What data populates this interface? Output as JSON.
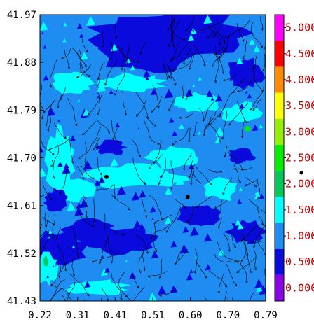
{
  "chart_data": {
    "type": "heatmap",
    "title": "",
    "xlabel": "",
    "ylabel": "",
    "xlim": [
      0.22,
      0.79
    ],
    "ylim": [
      41.43,
      41.97
    ],
    "x_ticks": [
      "0.22",
      "0.31",
      "0.41",
      "0.51",
      "0.60",
      "0.70",
      "0.79"
    ],
    "y_ticks": [
      "41.43",
      "41.52",
      "41.61",
      "41.70",
      "41.79",
      "41.88",
      "41.97"
    ],
    "streamlines": true,
    "points": [
      {
        "x": 0.388,
        "y": 41.664
      },
      {
        "x": 0.593,
        "y": 41.626
      }
    ],
    "colorbar": {
      "min": -0.25,
      "max": 5.25,
      "labels": [
        "0.000",
        "0.500",
        "1.000",
        "1.500",
        "2.000",
        "2.500",
        "3.000",
        "3.500",
        "4.000",
        "4.500",
        "5.000"
      ],
      "bands": [
        {
          "from": -0.25,
          "to": 0.25,
          "color": "#8a00e6"
        },
        {
          "from": 0.25,
          "to": 0.75,
          "color": "#0a0adc"
        },
        {
          "from": 0.75,
          "to": 1.25,
          "color": "#1e8cf0"
        },
        {
          "from": 1.25,
          "to": 1.75,
          "color": "#00ffff"
        },
        {
          "from": 1.75,
          "to": 2.25,
          "color": "#00c95a"
        },
        {
          "from": 2.25,
          "to": 2.75,
          "color": "#00ee00"
        },
        {
          "from": 2.75,
          "to": 3.25,
          "color": "#96ee00"
        },
        {
          "from": 3.25,
          "to": 3.75,
          "color": "#ffff00"
        },
        {
          "from": 3.75,
          "to": 4.25,
          "color": "#ff8c00"
        },
        {
          "from": 4.25,
          "to": 4.75,
          "color": "#ff0000"
        },
        {
          "from": 4.75,
          "to": 5.25,
          "color": "#ff00ff"
        }
      ]
    },
    "regions": [
      {
        "x": 0.55,
        "y": 41.935,
        "rx": 0.2,
        "ry": 0.04,
        "value": 0.5
      },
      {
        "x": 0.49,
        "y": 41.905,
        "rx": 0.14,
        "ry": 0.04,
        "value": 0.5
      },
      {
        "x": 0.74,
        "y": 41.86,
        "rx": 0.045,
        "ry": 0.03,
        "value": 0.5
      },
      {
        "x": 0.27,
        "y": 41.53,
        "rx": 0.07,
        "ry": 0.03,
        "value": 0.5
      },
      {
        "x": 0.42,
        "y": 41.545,
        "rx": 0.09,
        "ry": 0.025,
        "value": 0.5
      },
      {
        "x": 0.34,
        "y": 41.565,
        "rx": 0.06,
        "ry": 0.02,
        "value": 0.5
      },
      {
        "x": 0.3,
        "y": 41.84,
        "rx": 0.055,
        "ry": 0.02,
        "value": 1.5
      },
      {
        "x": 0.45,
        "y": 41.84,
        "rx": 0.08,
        "ry": 0.018,
        "value": 1.5
      },
      {
        "x": 0.62,
        "y": 41.805,
        "rx": 0.06,
        "ry": 0.018,
        "value": 1.5
      },
      {
        "x": 0.73,
        "y": 41.785,
        "rx": 0.05,
        "ry": 0.018,
        "value": 1.5
      },
      {
        "x": 0.27,
        "y": 41.695,
        "rx": 0.035,
        "ry": 0.06,
        "value": 1.5
      },
      {
        "x": 0.46,
        "y": 41.665,
        "rx": 0.12,
        "ry": 0.022,
        "value": 1.5
      },
      {
        "x": 0.56,
        "y": 41.7,
        "rx": 0.07,
        "ry": 0.02,
        "value": 1.5
      },
      {
        "x": 0.31,
        "y": 41.64,
        "rx": 0.05,
        "ry": 0.02,
        "value": 1.5
      },
      {
        "x": 0.68,
        "y": 41.64,
        "rx": 0.04,
        "ry": 0.02,
        "value": 1.5
      },
      {
        "x": 0.24,
        "y": 41.49,
        "rx": 0.025,
        "ry": 0.03,
        "value": 1.5
      },
      {
        "x": 0.36,
        "y": 41.455,
        "rx": 0.08,
        "ry": 0.015,
        "value": 1.5
      },
      {
        "x": 0.73,
        "y": 41.705,
        "rx": 0.035,
        "ry": 0.015,
        "value": 0.5
      },
      {
        "x": 0.4,
        "y": 41.72,
        "rx": 0.035,
        "ry": 0.015,
        "value": 0.5
      },
      {
        "x": 0.62,
        "y": 41.59,
        "rx": 0.05,
        "ry": 0.02,
        "value": 0.5
      },
      {
        "x": 0.74,
        "y": 41.56,
        "rx": 0.05,
        "ry": 0.02,
        "value": 0.5
      },
      {
        "x": 0.26,
        "y": 41.62,
        "rx": 0.03,
        "ry": 0.02,
        "value": 0.5
      },
      {
        "x": 0.745,
        "y": 41.755,
        "rx": 0.008,
        "ry": 0.006,
        "value": 2.5
      },
      {
        "x": 0.235,
        "y": 41.505,
        "rx": 0.006,
        "ry": 0.01,
        "value": 2.0
      }
    ]
  }
}
